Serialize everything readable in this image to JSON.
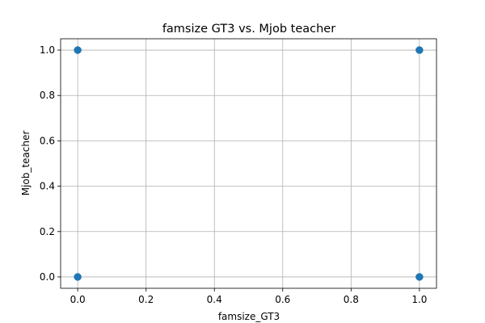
{
  "chart_data": {
    "type": "scatter",
    "title": "famsize GT3 vs. Mjob teacher",
    "xlabel": "famsize_GT3",
    "ylabel": "Mjob_teacher",
    "xlim": [
      -0.05,
      1.05
    ],
    "ylim": [
      -0.05,
      1.05
    ],
    "xticks": [
      0.0,
      0.2,
      0.4,
      0.6,
      0.8,
      1.0
    ],
    "yticks": [
      0.0,
      0.2,
      0.4,
      0.6,
      0.8,
      1.0
    ],
    "xtick_labels": [
      "0.0",
      "0.2",
      "0.4",
      "0.6",
      "0.8",
      "1.0"
    ],
    "ytick_labels": [
      "0.0",
      "0.2",
      "0.4",
      "0.6",
      "0.8",
      "1.0"
    ],
    "grid": true,
    "point_color": "#1f77b4",
    "points": [
      {
        "x": 0,
        "y": 1
      },
      {
        "x": 1,
        "y": 1
      },
      {
        "x": 0,
        "y": 0
      },
      {
        "x": 1,
        "y": 0
      }
    ]
  }
}
